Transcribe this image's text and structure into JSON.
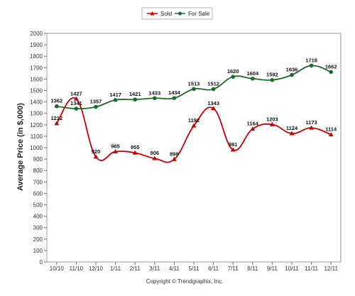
{
  "chart_data": {
    "type": "line",
    "ylabel": "Average Price (in $,000)",
    "ylim": [
      0,
      2000
    ],
    "y_ticks": [
      0,
      100,
      200,
      300,
      400,
      500,
      600,
      700,
      800,
      900,
      1000,
      1100,
      1200,
      1300,
      1400,
      1500,
      1600,
      1700,
      1800,
      1900,
      2000
    ],
    "categories": [
      "10/10",
      "11/10",
      "12/10",
      "1/11",
      "2/11",
      "3/11",
      "4/11",
      "5/11",
      "6/11",
      "7/11",
      "8/11",
      "9/11",
      "10/11",
      "11/11",
      "12/11"
    ],
    "series": [
      {
        "name": "Sold",
        "color": "#cc0000",
        "marker": "triangle",
        "values": [
          1212,
          1427,
          920,
          965,
          955,
          906,
          898,
          1192,
          1343,
          981,
          1164,
          1203,
          1124,
          1173,
          1114
        ]
      },
      {
        "name": "For Sale",
        "color": "#1a6b2a",
        "marker": "circle",
        "values": [
          1362,
          1341,
          1357,
          1417,
          1421,
          1433,
          1434,
          1513,
          1512,
          1620,
          1604,
          1592,
          1636,
          1718,
          1662
        ]
      }
    ],
    "legend_position": "top-center",
    "grid": false,
    "footer": "Copyright © Trendgraphix, Inc."
  }
}
